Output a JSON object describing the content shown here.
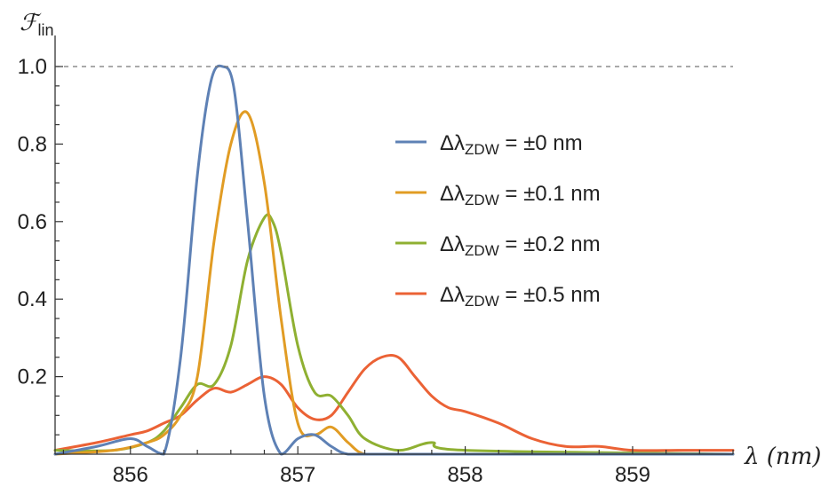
{
  "chart_data": {
    "type": "line",
    "title": "",
    "xlabel": "λ (nm)",
    "ylabel": "ℱ lin",
    "xlim": [
      855.55,
      859.6
    ],
    "ylim": [
      0,
      1.0
    ],
    "x_ticks": [
      "856",
      "857",
      "858",
      "859"
    ],
    "y_ticks": [
      "0.2",
      "0.4",
      "0.6",
      "0.8",
      "1.0"
    ],
    "reference_line": {
      "y": 1.0,
      "style": "dashed"
    },
    "legend_placement": "center-right",
    "grid": false,
    "series": [
      {
        "name": "Δλ_ZDW = ±0 nm",
        "color": "#5E81B5",
        "x": [
          855.55,
          855.8,
          856.0,
          856.1,
          856.2,
          856.3,
          856.4,
          856.48,
          856.55,
          856.62,
          856.7,
          856.8,
          856.9,
          857.0,
          857.1,
          857.2,
          857.3,
          857.5,
          858.0,
          859.6
        ],
        "y": [
          0.0,
          0.02,
          0.04,
          0.02,
          0.0,
          0.25,
          0.72,
          0.96,
          1.0,
          0.94,
          0.6,
          0.15,
          0.0,
          0.04,
          0.05,
          0.02,
          0.0,
          0.0,
          0.0,
          0.0
        ]
      },
      {
        "name": "Δλ_ZDW = ±0.1 nm",
        "color": "#E19C24",
        "x": [
          855.55,
          855.9,
          856.1,
          856.2,
          856.3,
          856.4,
          856.5,
          856.6,
          856.7,
          856.8,
          856.9,
          857.0,
          857.1,
          857.2,
          857.3,
          857.4,
          857.6,
          858.0,
          859.6
        ],
        "y": [
          0.0,
          0.01,
          0.03,
          0.05,
          0.1,
          0.2,
          0.55,
          0.8,
          0.88,
          0.7,
          0.35,
          0.08,
          0.05,
          0.07,
          0.03,
          0.0,
          0.0,
          0.0,
          0.0
        ]
      },
      {
        "name": "Δλ_ZDW = ±0.2 nm",
        "color": "#8FB032",
        "x": [
          855.55,
          855.9,
          856.1,
          856.2,
          856.3,
          856.4,
          856.5,
          856.6,
          856.7,
          856.8,
          856.85,
          856.9,
          857.0,
          857.1,
          857.2,
          857.3,
          857.4,
          857.6,
          857.8,
          858.0,
          859.6
        ],
        "y": [
          0.01,
          0.01,
          0.03,
          0.06,
          0.12,
          0.18,
          0.18,
          0.28,
          0.5,
          0.61,
          0.6,
          0.52,
          0.28,
          0.16,
          0.15,
          0.1,
          0.04,
          0.01,
          0.03,
          0.01,
          0.0
        ]
      },
      {
        "name": "Δλ_ZDW = ±0.5 nm",
        "color": "#EB6235",
        "x": [
          855.55,
          855.8,
          856.0,
          856.1,
          856.2,
          856.3,
          856.4,
          856.5,
          856.6,
          856.7,
          856.8,
          856.9,
          857.0,
          857.1,
          857.2,
          857.3,
          857.4,
          857.5,
          857.6,
          857.7,
          857.8,
          857.9,
          858.0,
          858.2,
          858.4,
          858.6,
          858.8,
          859.0,
          859.3,
          859.6
        ],
        "y": [
          0.01,
          0.03,
          0.05,
          0.06,
          0.08,
          0.1,
          0.14,
          0.17,
          0.16,
          0.18,
          0.2,
          0.18,
          0.12,
          0.09,
          0.1,
          0.16,
          0.22,
          0.25,
          0.25,
          0.2,
          0.15,
          0.12,
          0.11,
          0.08,
          0.04,
          0.02,
          0.02,
          0.01,
          0.01,
          0.01
        ]
      }
    ]
  }
}
